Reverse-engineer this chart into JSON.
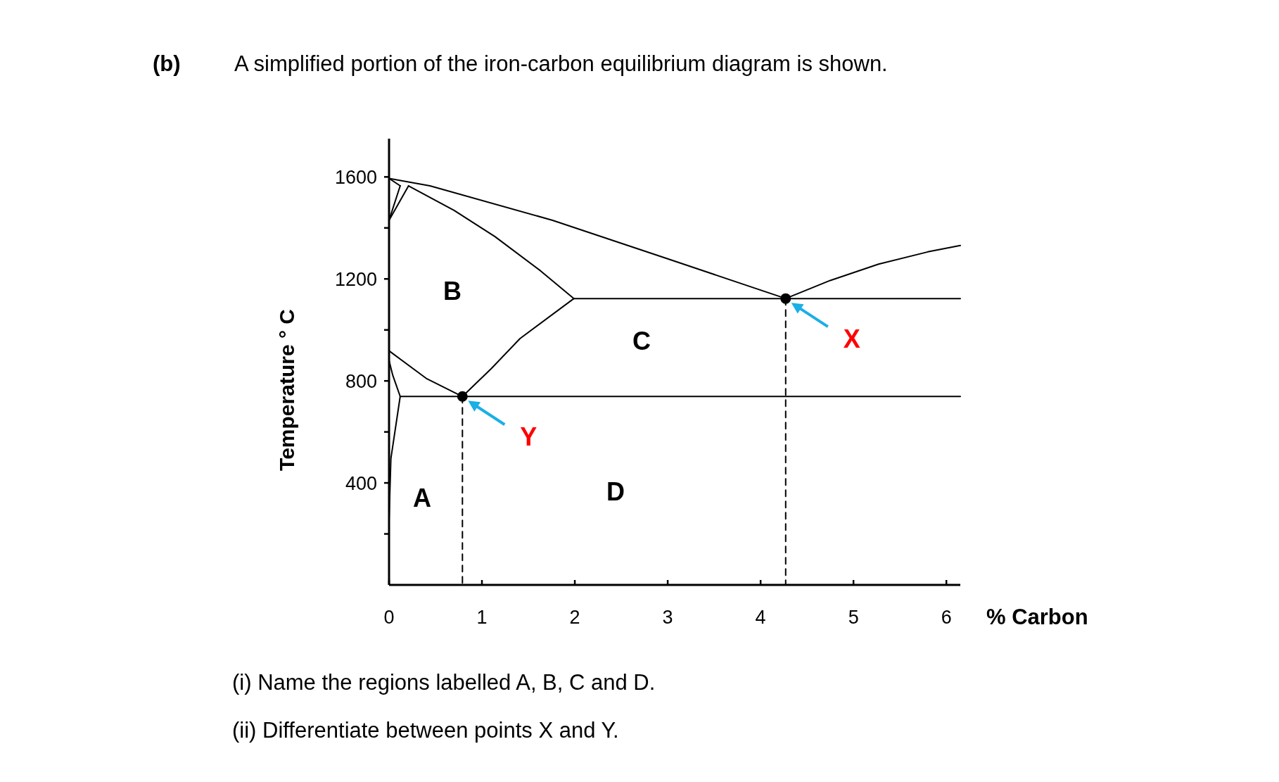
{
  "chart_data": {
    "type": "line",
    "title": "A simplified portion of the iron-carbon equilibrium diagram is shown.",
    "xlabel": "% Carbon",
    "ylabel": "Temperature ° C",
    "xlim": [
      0,
      6.15
    ],
    "ylim": [
      0,
      1750
    ],
    "xticks": [
      0,
      1,
      2,
      3,
      4,
      5,
      6
    ],
    "yticks": [
      {
        "value": 200,
        "label": null
      },
      400,
      {
        "value": 600,
        "label": null
      },
      800,
      {
        "value": 1000,
        "label": null
      },
      1200,
      {
        "value": 1400,
        "label": null
      },
      1600
    ],
    "grid": false,
    "series": [
      {
        "color": "#000000",
        "x": [
          0,
          0.44,
          1.76,
          2.99,
          4.27
        ],
        "values": [
          1594,
          1565,
          1430,
          1280,
          1123
        ]
      },
      {
        "color": "#000000",
        "x": [
          4.27,
          4.75,
          5.27,
          5.8,
          6.15
        ],
        "values": [
          1123,
          1194,
          1258,
          1306,
          1331
        ]
      },
      {
        "color": "#000000",
        "x": [
          0.21,
          0.7,
          1.14,
          1.63,
          1.99
        ],
        "values": [
          1565,
          1469,
          1366,
          1232,
          1123
        ]
      },
      {
        "color": "#000000",
        "x": [
          1.99,
          6.15
        ],
        "values": [
          1123,
          1123
        ]
      },
      {
        "color": "#000000",
        "x": [
          1.99,
          1.41,
          1.1,
          0.79
        ],
        "values": [
          1123,
          966,
          848,
          739
        ]
      },
      {
        "color": "#000000",
        "x": [
          0.12,
          6.15
        ],
        "values": [
          739,
          739
        ]
      },
      {
        "color": "#000000",
        "x": [
          0,
          0.4,
          0.79
        ],
        "values": [
          918,
          810,
          739
        ]
      },
      {
        "color": "#000000",
        "x": [
          0,
          0.04,
          0.12
        ],
        "values": [
          880,
          822,
          739
        ]
      },
      {
        "color": "#000000",
        "x": [
          0.12,
          0.02,
          0
        ],
        "values": [
          739,
          496,
          256
        ]
      },
      {
        "color": "#000000",
        "x": [
          0,
          0.12
        ],
        "values": [
          1594,
          1565
        ]
      },
      {
        "color": "#000000",
        "x": [
          0,
          0.12
        ],
        "values": [
          1430,
          1565
        ]
      },
      {
        "color": "#000000",
        "x": [
          0,
          0.21
        ],
        "values": [
          1430,
          1565
        ]
      },
      {
        "color": "#000000",
        "x": [
          0.79,
          0.79
        ],
        "values": [
          739,
          0
        ],
        "line_style": "dashed"
      },
      {
        "color": "#000000",
        "x": [
          4.27,
          4.27
        ],
        "values": [
          1123,
          0
        ],
        "line_style": "dashed"
      },
      {
        "type": "scatter",
        "name": "X",
        "color": "#000000",
        "x": [
          4.27
        ],
        "values": [
          1123
        ],
        "marker": "circle"
      },
      {
        "type": "scatter",
        "name": "Y",
        "color": "#000000",
        "x": [
          0.79
        ],
        "values": [
          739
        ],
        "marker": "circle"
      }
    ],
    "annotations": [
      "(b)",
      "A",
      "B",
      "C",
      "D",
      "(i) Name the regions labelled A, B, C and D.",
      "(ii) Differentiate between points X and Y."
    ]
  }
}
